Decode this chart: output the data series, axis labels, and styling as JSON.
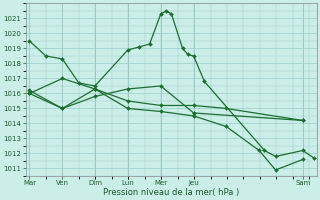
{
  "bg_color": "#cceee8",
  "grid_color": "#99cccc",
  "line_color": "#1a6e2e",
  "xlabel": "Pression niveau de la mer( hPa )",
  "ylim": [
    1010.5,
    1022.0
  ],
  "yticks": [
    1011,
    1012,
    1013,
    1014,
    1015,
    1016,
    1017,
    1018,
    1019,
    1020,
    1021
  ],
  "xlim": [
    -0.1,
    7.5
  ],
  "xtick_positions": [
    0,
    0.86,
    1.71,
    2.57,
    3.43,
    4.29,
    7.14
  ],
  "xtick_labels": [
    "Mar",
    "Ven",
    "Dim",
    "Lun",
    "Mer",
    "Jeu",
    "Sam"
  ],
  "series1_x": [
    0.0,
    0.43,
    0.86,
    1.29,
    1.71,
    2.57,
    2.86,
    3.14,
    3.43,
    3.57,
    3.71,
    4.0,
    4.14,
    4.29,
    4.57,
    6.14,
    6.43,
    7.14,
    7.43
  ],
  "series1_y": [
    1019.5,
    1018.5,
    1018.3,
    1016.7,
    1016.5,
    1018.9,
    1019.1,
    1019.3,
    1021.3,
    1021.5,
    1021.3,
    1019.0,
    1018.6,
    1018.5,
    1016.8,
    1012.2,
    1011.8,
    1012.2,
    1011.7
  ],
  "series2_x": [
    0.0,
    0.86,
    1.71,
    2.57,
    3.43,
    4.29,
    7.14
  ],
  "series2_y": [
    1016.2,
    1015.0,
    1015.8,
    1016.3,
    1016.5,
    1014.7,
    1014.2
  ],
  "series3_x": [
    0.0,
    0.86,
    1.71,
    2.57,
    3.43,
    4.29,
    5.14,
    7.14
  ],
  "series3_y": [
    1016.0,
    1017.0,
    1016.3,
    1015.5,
    1015.2,
    1015.2,
    1015.0,
    1014.2
  ],
  "series4_x": [
    0.0,
    0.86,
    1.71,
    2.57,
    3.43,
    4.29,
    5.14,
    6.0,
    6.43,
    7.14
  ],
  "series4_y": [
    1016.0,
    1015.0,
    1016.3,
    1015.0,
    1014.8,
    1014.5,
    1013.8,
    1012.2,
    1010.9,
    1011.6
  ]
}
